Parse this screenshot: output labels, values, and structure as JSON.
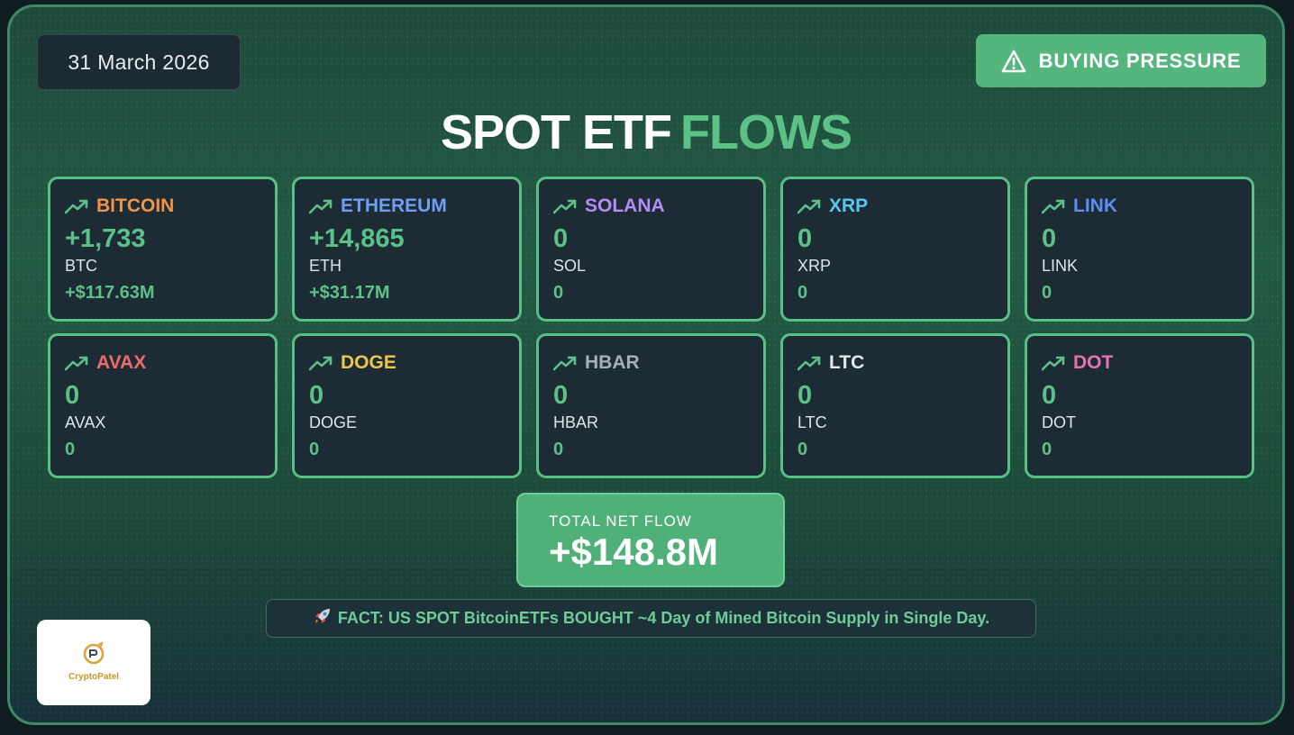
{
  "header": {
    "date": "31 March 2026",
    "status_label": "BUYING PRESSURE",
    "status_icon": "warning-triangle-icon"
  },
  "title": {
    "part1": "SPOT ETF",
    "part2": "FLOWS"
  },
  "colors": {
    "accent_green": "#5cc187",
    "card_bg": "#1d2b35",
    "card_border": "#57c085"
  },
  "assets": [
    {
      "name": "BITCOIN",
      "color": "#f0944a",
      "qty": "+1,733",
      "symbol": "BTC",
      "usd": "+$117.63M"
    },
    {
      "name": "ETHEREUM",
      "color": "#6e9ff0",
      "qty": "+14,865",
      "symbol": "ETH",
      "usd": "+$31.17M"
    },
    {
      "name": "SOLANA",
      "color": "#b38cf5",
      "qty": "0",
      "symbol": "SOL",
      "usd": "0"
    },
    {
      "name": "XRP",
      "color": "#58c6f0",
      "qty": "0",
      "symbol": "XRP",
      "usd": "0"
    },
    {
      "name": "LINK",
      "color": "#5b8ef2",
      "qty": "0",
      "symbol": "LINK",
      "usd": "0"
    },
    {
      "name": "AVAX",
      "color": "#ec6c6c",
      "qty": "0",
      "symbol": "AVAX",
      "usd": "0"
    },
    {
      "name": "DOGE",
      "color": "#ecc54c",
      "qty": "0",
      "symbol": "DOGE",
      "usd": "0"
    },
    {
      "name": "HBAR",
      "color": "#a5afb8",
      "qty": "0",
      "symbol": "HBAR",
      "usd": "0"
    },
    {
      "name": "LTC",
      "color": "#e3e7ea",
      "qty": "0",
      "symbol": "LTC",
      "usd": "0"
    },
    {
      "name": "DOT",
      "color": "#e873ac",
      "qty": "0",
      "symbol": "DOT",
      "usd": "0"
    }
  ],
  "total": {
    "label": "TOTAL NET FLOW",
    "value": "+$148.8M"
  },
  "fact": {
    "icon": "rocket-icon",
    "text": "FACT: US SPOT BitcoinETFs BOUGHT ~4 Day of Mined Bitcoin Supply in Single Day."
  },
  "logo": {
    "text": "CryptoPatel"
  }
}
